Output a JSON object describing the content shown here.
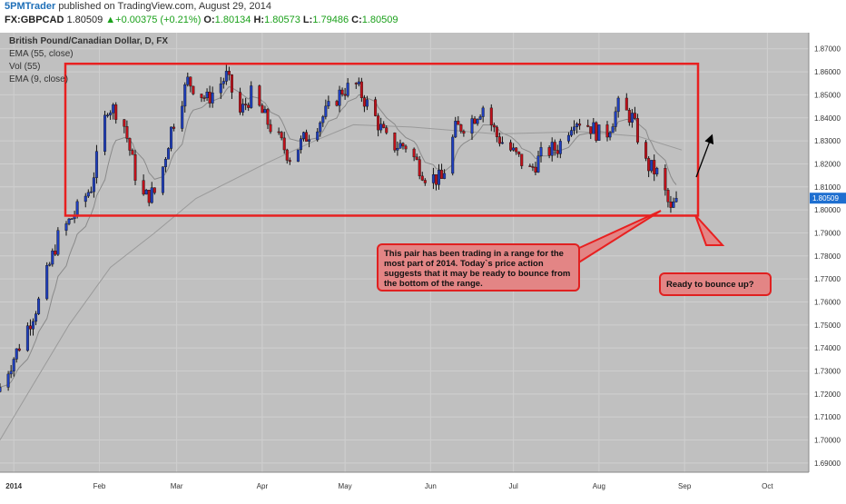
{
  "header": {
    "author": "5PMTrader",
    "published": "published on TradingView.com, August 29, 2014",
    "symbol": "FX:GBPCAD",
    "last": "1.80509",
    "change_arrow": "▲",
    "change": "+0.00375 (+0.21%)",
    "o_label": "O:",
    "o_value": "1.80134",
    "h_label": "H:",
    "h_value": "1.80573",
    "l_label": "L:",
    "l_value": "1.79486",
    "c_label": "C:",
    "c_value": "1.80509"
  },
  "legend": {
    "title": "British Pound/Canadian Dollar, D, FX",
    "items": [
      "EMA (55, close)",
      "Vol (55)",
      "EMA (9, close)"
    ]
  },
  "annotations": {
    "range_note": "This pair has been trading in a range for the most part of 2014. Today`s price action suggests that it may be ready to bounce from the bottom of the range.",
    "bounce_note": "Ready to bounce up?"
  },
  "colors": {
    "plot_bg": "#c0c0c0",
    "bull": "#1f3fbf",
    "bear": "#c0101a",
    "range_box": "#e82020",
    "callout_fill": "#e38585",
    "last_price_badge": "#1e6fd0",
    "header_up": "#1aa01a"
  },
  "chart_data": {
    "type": "candlestick",
    "title": "British Pound/Canadian Dollar, D, FX",
    "x_ticks": [
      "2014",
      "Feb",
      "Mar",
      "Apr",
      "May",
      "Jun",
      "Jul",
      "Aug",
      "Sep",
      "Oct"
    ],
    "y_ticks": [
      "1.87000",
      "1.86000",
      "1.85000",
      "1.84000",
      "1.83000",
      "1.82000",
      "1.81000",
      "1.80000",
      "1.79000",
      "1.78000",
      "1.77000",
      "1.76000",
      "1.75000",
      "1.74000",
      "1.73000",
      "1.72000",
      "1.71000",
      "1.70000",
      "1.69000"
    ],
    "ylim": [
      1.686,
      1.877
    ],
    "last_price_label": "1.80509",
    "range": {
      "top": 1.8635,
      "bottom": 1.7975,
      "start_month": "Jan",
      "end_month": "Aug"
    },
    "close_path": [
      {
        "date": "2013-12-27",
        "close": 1.723
      },
      {
        "date": "2014-01-03",
        "close": 1.741
      },
      {
        "date": "2014-01-10",
        "close": 1.76
      },
      {
        "date": "2014-01-17",
        "close": 1.788
      },
      {
        "date": "2014-01-24",
        "close": 1.8
      },
      {
        "date": "2014-01-29",
        "close": 1.81
      },
      {
        "date": "2014-02-04",
        "close": 1.845
      },
      {
        "date": "2014-02-09",
        "close": 1.842
      },
      {
        "date": "2014-02-16",
        "close": 1.805
      },
      {
        "date": "2014-02-22",
        "close": 1.808
      },
      {
        "date": "2014-02-27",
        "close": 1.835
      },
      {
        "date": "2014-03-05",
        "close": 1.856
      },
      {
        "date": "2014-03-12",
        "close": 1.848
      },
      {
        "date": "2014-03-19",
        "close": 1.858
      },
      {
        "date": "2014-03-24",
        "close": 1.842
      },
      {
        "date": "2014-03-28",
        "close": 1.85
      },
      {
        "date": "2014-04-03",
        "close": 1.838
      },
      {
        "date": "2014-04-11",
        "close": 1.823
      },
      {
        "date": "2014-04-17",
        "close": 1.832
      },
      {
        "date": "2014-04-24",
        "close": 1.842
      },
      {
        "date": "2014-04-30",
        "close": 1.852
      },
      {
        "date": "2014-05-05",
        "close": 1.854
      },
      {
        "date": "2014-05-12",
        "close": 1.84
      },
      {
        "date": "2014-05-17",
        "close": 1.828
      },
      {
        "date": "2014-05-23",
        "close": 1.828
      },
      {
        "date": "2014-05-30",
        "close": 1.815
      },
      {
        "date": "2014-06-05",
        "close": 1.813
      },
      {
        "date": "2014-06-10",
        "close": 1.835
      },
      {
        "date": "2014-06-15",
        "close": 1.838
      },
      {
        "date": "2014-06-20",
        "close": 1.845
      },
      {
        "date": "2014-06-25",
        "close": 1.832
      },
      {
        "date": "2014-06-30",
        "close": 1.826
      },
      {
        "date": "2014-07-07",
        "close": 1.817
      },
      {
        "date": "2014-07-12",
        "close": 1.825
      },
      {
        "date": "2014-07-17",
        "close": 1.827
      },
      {
        "date": "2014-07-23",
        "close": 1.84
      },
      {
        "date": "2014-07-28",
        "close": 1.837
      },
      {
        "date": "2014-08-03",
        "close": 1.831
      },
      {
        "date": "2014-08-08",
        "close": 1.845
      },
      {
        "date": "2014-08-13",
        "close": 1.84
      },
      {
        "date": "2014-08-18",
        "close": 1.82
      },
      {
        "date": "2014-08-23",
        "close": 1.815
      },
      {
        "date": "2014-08-27",
        "close": 1.799
      },
      {
        "date": "2014-08-29",
        "close": 1.8051
      }
    ],
    "ema55_path": [
      {
        "date": "2013-12-27",
        "value": 1.7
      },
      {
        "date": "2014-01-06",
        "value": 1.72
      },
      {
        "date": "2014-01-21",
        "value": 1.75
      },
      {
        "date": "2014-02-05",
        "value": 1.775
      },
      {
        "date": "2014-02-21",
        "value": 1.79
      },
      {
        "date": "2014-03-08",
        "value": 1.805
      },
      {
        "date": "2014-04-02",
        "value": 1.82
      },
      {
        "date": "2014-04-20",
        "value": 1.83
      },
      {
        "date": "2014-05-04",
        "value": 1.837
      },
      {
        "date": "2014-05-25",
        "value": 1.836
      },
      {
        "date": "2014-06-25",
        "value": 1.833
      },
      {
        "date": "2014-07-25",
        "value": 1.834
      },
      {
        "date": "2014-08-15",
        "value": 1.832
      },
      {
        "date": "2014-08-31",
        "value": 1.826
      }
    ]
  }
}
